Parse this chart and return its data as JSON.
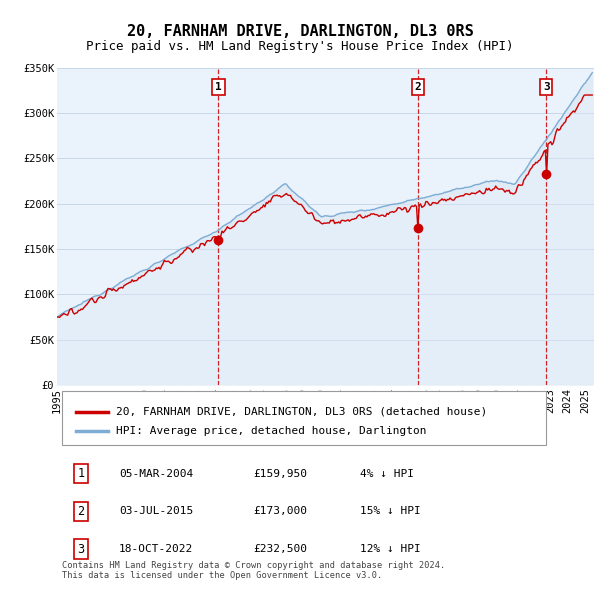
{
  "title": "20, FARNHAM DRIVE, DARLINGTON, DL3 0RS",
  "subtitle": "Price paid vs. HM Land Registry's House Price Index (HPI)",
  "ylim": [
    0,
    350000
  ],
  "xlim_start": 1995.0,
  "xlim_end": 2025.5,
  "yticks": [
    0,
    50000,
    100000,
    150000,
    200000,
    250000,
    300000,
    350000
  ],
  "ytick_labels": [
    "£0",
    "£50K",
    "£100K",
    "£150K",
    "£200K",
    "£250K",
    "£300K",
    "£350K"
  ],
  "xticks": [
    1995,
    1996,
    1997,
    1998,
    1999,
    2000,
    2001,
    2002,
    2003,
    2004,
    2005,
    2006,
    2007,
    2008,
    2009,
    2010,
    2011,
    2012,
    2013,
    2014,
    2015,
    2016,
    2017,
    2018,
    2019,
    2020,
    2021,
    2022,
    2023,
    2024,
    2025
  ],
  "sale_dates": [
    2004.17,
    2015.5,
    2022.79
  ],
  "sale_prices": [
    159950,
    173000,
    232500
  ],
  "sale_labels": [
    "1",
    "2",
    "3"
  ],
  "sale_date_strs": [
    "05-MAR-2004",
    "03-JUL-2015",
    "18-OCT-2022"
  ],
  "sale_price_strs": [
    "£159,950",
    "£173,000",
    "£232,500"
  ],
  "sale_hpi_strs": [
    "4% ↓ HPI",
    "15% ↓ HPI",
    "12% ↓ HPI"
  ],
  "red_line_color": "#cc0000",
  "blue_line_color": "#7dadd4",
  "fill_color": "#dce9f5",
  "dashed_line_color": "#cc0000",
  "background_color": "#ffffff",
  "chart_bg_color": "#eaf2fb",
  "grid_color": "#c8d8e8",
  "legend_label_red": "20, FARNHAM DRIVE, DARLINGTON, DL3 0RS (detached house)",
  "legend_label_blue": "HPI: Average price, detached house, Darlington",
  "footer": "Contains HM Land Registry data © Crown copyright and database right 2024.\nThis data is licensed under the Open Government Licence v3.0.",
  "title_fontsize": 11,
  "subtitle_fontsize": 9,
  "tick_fontsize": 7.5,
  "legend_fontsize": 8
}
